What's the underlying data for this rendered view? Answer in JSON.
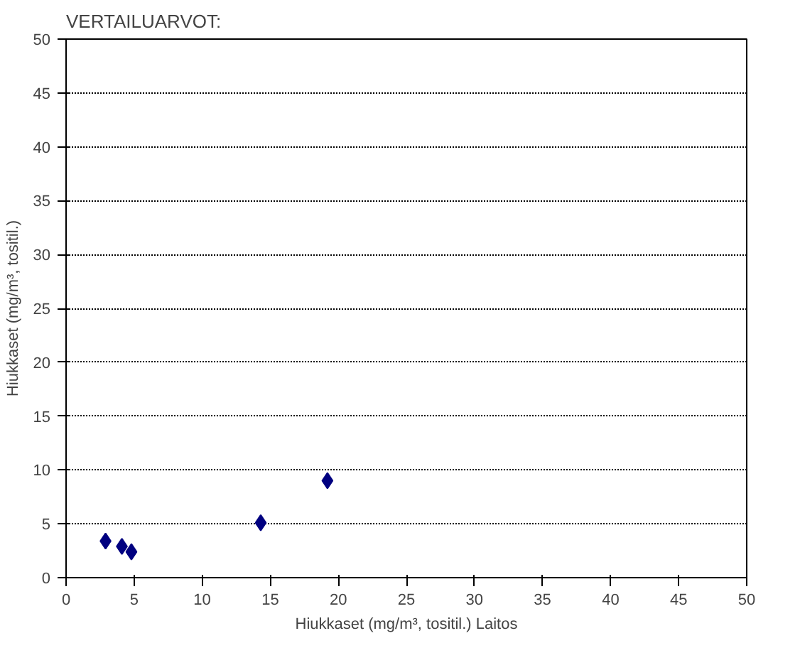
{
  "chart_data": {
    "type": "scatter",
    "title": "VERTAILUARVOT:",
    "xlabel": "Hiukkaset (mg/m³, tositil.) Laitos",
    "ylabel": "Hiukkaset (mg/m³, tositil.)",
    "x": [
      2.9,
      4.1,
      4.8,
      14.3,
      19.2
    ],
    "series": [
      {
        "color": "#000080",
        "values": [
          3.4,
          2.9,
          2.4,
          5.1,
          9.0
        ]
      }
    ],
    "xlim": [
      0,
      50
    ],
    "ylim": [
      0,
      50
    ],
    "xticks": [
      0,
      5,
      10,
      15,
      20,
      25,
      30,
      35,
      40,
      45,
      50
    ],
    "yticks": [
      0,
      5,
      10,
      15,
      20,
      25,
      30,
      35,
      40,
      45,
      50
    ],
    "grid": "y",
    "marker": "diamond"
  }
}
